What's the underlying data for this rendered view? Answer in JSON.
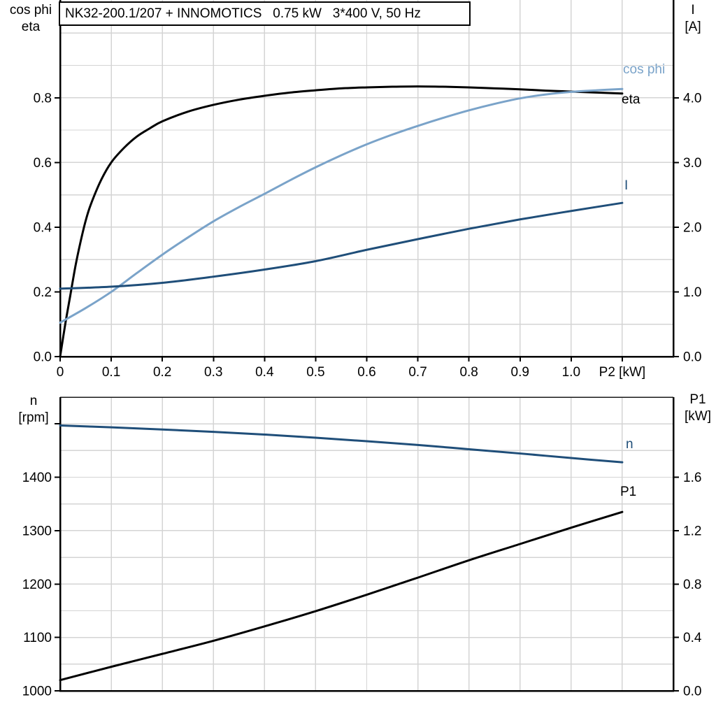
{
  "title_box": {
    "text": "NK32-200.1/207 + INNOMOTICS   0.75 kW   3*400 V, 50 Hz"
  },
  "corner_titles": {
    "top_left": [
      "cos phi",
      "eta"
    ],
    "top_right": [
      "I",
      "[A]"
    ],
    "bottom_left": [
      "n",
      "[rpm]"
    ],
    "bottom_right": [
      "P1",
      "[kW]"
    ]
  },
  "colors": {
    "black": "#000000",
    "light_blue": "#7AA3C9",
    "dark_blue": "#1F4E79",
    "grid": "#D4D4D4",
    "frame": "#1A1A1A"
  },
  "chart_data": [
    {
      "type": "line",
      "title": "Motor efficiency, power factor and current vs output power",
      "x_axis": {
        "label": "P2 [kW]",
        "min": 0,
        "max": 1.2,
        "tick_step": 0.1,
        "ticks": [
          0,
          0.1,
          0.2,
          0.3,
          0.4,
          0.5,
          0.6,
          0.7,
          0.8,
          0.9,
          1.0,
          1.1
        ],
        "tick_labels": [
          "0",
          "0.1",
          "0.2",
          "0.3",
          "0.4",
          "0.5",
          "0.6",
          "0.7",
          "0.8",
          "0.9",
          "1.0",
          "P2 [kW]"
        ]
      },
      "y_left": {
        "label": "cos phi / eta",
        "min": 0,
        "max": 1.102,
        "grid_step": 0.1,
        "ticks": [
          0,
          0.2,
          0.4,
          0.6,
          0.8
        ],
        "tick_labels": [
          "0.0",
          "0.2",
          "0.4",
          "0.6",
          "0.8"
        ]
      },
      "y_right": {
        "label": "I [A]",
        "min": 0,
        "max": 5.51,
        "ticks": [
          0,
          1,
          2,
          3,
          4
        ],
        "tick_labels": [
          "0.0",
          "1.0",
          "2.0",
          "3.0",
          "4.0"
        ]
      },
      "grid": true,
      "legend_position": "end-of-curve",
      "series": [
        {
          "name": "eta",
          "color": "#000000",
          "axis": "left",
          "points": [
            [
              0,
              0
            ],
            [
              0.01,
              0.1
            ],
            [
              0.02,
              0.19
            ],
            [
              0.03,
              0.28
            ],
            [
              0.04,
              0.355
            ],
            [
              0.05,
              0.42
            ],
            [
              0.06,
              0.47
            ],
            [
              0.08,
              0.545
            ],
            [
              0.1,
              0.6
            ],
            [
              0.125,
              0.645
            ],
            [
              0.15,
              0.68
            ],
            [
              0.175,
              0.705
            ],
            [
              0.2,
              0.727
            ],
            [
              0.25,
              0.757
            ],
            [
              0.3,
              0.778
            ],
            [
              0.35,
              0.794
            ],
            [
              0.4,
              0.806
            ],
            [
              0.45,
              0.816
            ],
            [
              0.5,
              0.823
            ],
            [
              0.55,
              0.829
            ],
            [
              0.6,
              0.832
            ],
            [
              0.65,
              0.834
            ],
            [
              0.7,
              0.835
            ],
            [
              0.75,
              0.834
            ],
            [
              0.8,
              0.832
            ],
            [
              0.85,
              0.829
            ],
            [
              0.9,
              0.826
            ],
            [
              0.95,
              0.822
            ],
            [
              1.0,
              0.819
            ],
            [
              1.05,
              0.816
            ],
            [
              1.1,
              0.813
            ]
          ]
        },
        {
          "name": "cos phi",
          "color": "#7AA3C9",
          "axis": "left",
          "points": [
            [
              0,
              0.105
            ],
            [
              0.05,
              0.15
            ],
            [
              0.1,
              0.2
            ],
            [
              0.15,
              0.258
            ],
            [
              0.2,
              0.315
            ],
            [
              0.25,
              0.368
            ],
            [
              0.3,
              0.418
            ],
            [
              0.35,
              0.462
            ],
            [
              0.4,
              0.503
            ],
            [
              0.45,
              0.545
            ],
            [
              0.5,
              0.585
            ],
            [
              0.55,
              0.622
            ],
            [
              0.6,
              0.656
            ],
            [
              0.65,
              0.686
            ],
            [
              0.7,
              0.713
            ],
            [
              0.75,
              0.738
            ],
            [
              0.8,
              0.761
            ],
            [
              0.85,
              0.781
            ],
            [
              0.9,
              0.798
            ],
            [
              0.95,
              0.81
            ],
            [
              1.0,
              0.818
            ],
            [
              1.05,
              0.823
            ],
            [
              1.1,
              0.827
            ]
          ]
        },
        {
          "name": "I",
          "color": "#1F4E79",
          "axis": "right",
          "points": [
            [
              0,
              1.05
            ],
            [
              0.1,
              1.08
            ],
            [
              0.2,
              1.14
            ],
            [
              0.3,
              1.235
            ],
            [
              0.4,
              1.345
            ],
            [
              0.5,
              1.475
            ],
            [
              0.6,
              1.65
            ],
            [
              0.7,
              1.815
            ],
            [
              0.8,
              1.975
            ],
            [
              0.9,
              2.12
            ],
            [
              1.0,
              2.25
            ],
            [
              1.1,
              2.375
            ]
          ]
        }
      ]
    },
    {
      "type": "line",
      "title": "Speed and input power vs output power",
      "x_axis": {
        "label": "P2 [kW]",
        "min": 0,
        "max": 1.2,
        "tick_step": 0.1,
        "ticks": [],
        "tick_labels": []
      },
      "y_left": {
        "label": "n [rpm]",
        "min": 1000,
        "max": 1550,
        "grid_step": 50,
        "ticks": [
          1000,
          1100,
          1200,
          1300,
          1400,
          1500
        ],
        "tick_labels": [
          "1000",
          "1100",
          "1200",
          "1300",
          "1400",
          ""
        ]
      },
      "y_right": {
        "label": "P1 [kW]",
        "min": 0,
        "max": 2.2,
        "ticks": [
          0,
          0.4,
          0.8,
          1.2,
          1.6
        ],
        "tick_labels": [
          "0.0",
          "0.4",
          "0.8",
          "1.2",
          "1.6"
        ]
      },
      "grid": true,
      "legend_position": "end-of-curve",
      "series": [
        {
          "name": "n",
          "color": "#1F4E79",
          "axis": "left",
          "points": [
            [
              0,
              1497
            ],
            [
              0.1,
              1493.5
            ],
            [
              0.2,
              1489.5
            ],
            [
              0.3,
              1485
            ],
            [
              0.4,
              1480
            ],
            [
              0.5,
              1474
            ],
            [
              0.6,
              1467.5
            ],
            [
              0.7,
              1460.5
            ],
            [
              0.8,
              1452.5
            ],
            [
              0.9,
              1444.5
            ],
            [
              1.0,
              1436
            ],
            [
              1.1,
              1428
            ]
          ]
        },
        {
          "name": "P1",
          "color": "#000000",
          "axis": "right",
          "points": [
            [
              0,
              0.08
            ],
            [
              0.1,
              0.18
            ],
            [
              0.2,
              0.277
            ],
            [
              0.3,
              0.375
            ],
            [
              0.4,
              0.483
            ],
            [
              0.5,
              0.597
            ],
            [
              0.6,
              0.72
            ],
            [
              0.7,
              0.848
            ],
            [
              0.8,
              0.978
            ],
            [
              0.9,
              1.1
            ],
            [
              1.0,
              1.222
            ],
            [
              1.1,
              1.34
            ]
          ]
        }
      ]
    }
  ]
}
